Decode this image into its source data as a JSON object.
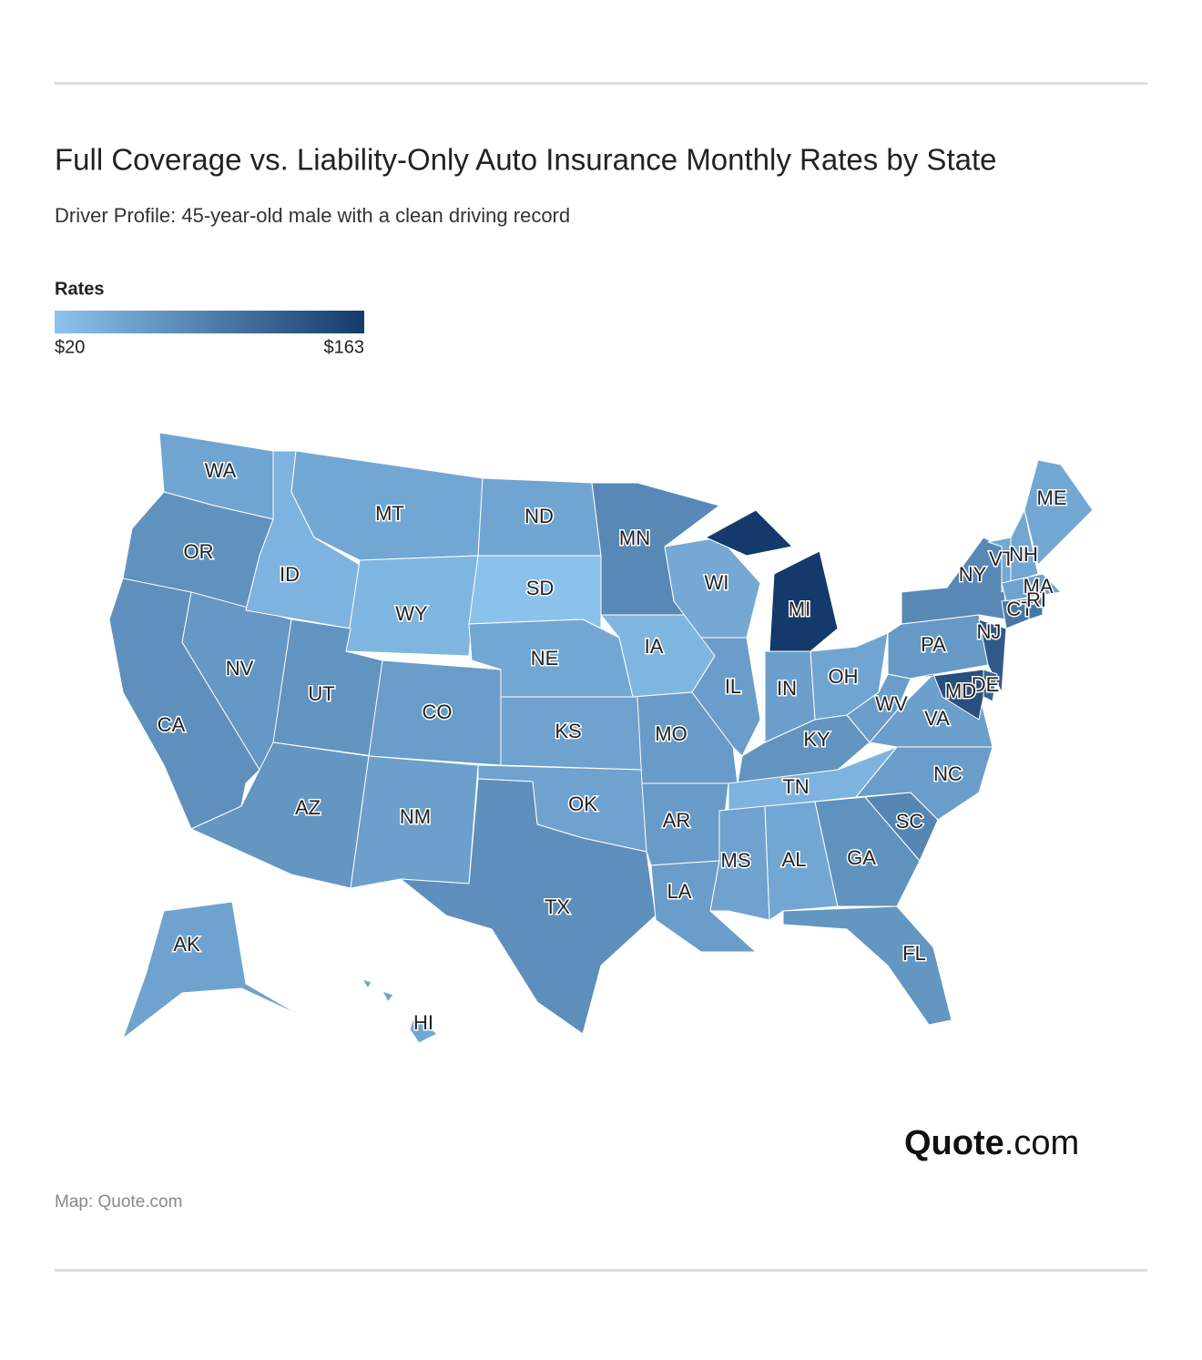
{
  "header": {
    "title": "Full Coverage vs. Liability-Only Auto Insurance Monthly Rates by State",
    "subtitle": "Driver Profile: 45-year-old male with a clean driving record"
  },
  "legend": {
    "title": "Rates",
    "min": {
      "value": 20,
      "label": "$20"
    },
    "max": {
      "value": 163,
      "label": "$163"
    },
    "colors": [
      "#8cc4ee",
      "#143a6b"
    ]
  },
  "map": {
    "states": [
      {
        "code": "WA",
        "value": 52
      },
      {
        "code": "OR",
        "value": 72
      },
      {
        "code": "CA",
        "value": 74
      },
      {
        "code": "NV",
        "value": 66
      },
      {
        "code": "ID",
        "value": 38
      },
      {
        "code": "MT",
        "value": 50
      },
      {
        "code": "WY",
        "value": 35
      },
      {
        "code": "UT",
        "value": 70
      },
      {
        "code": "AZ",
        "value": 68
      },
      {
        "code": "CO",
        "value": 60
      },
      {
        "code": "NM",
        "value": 58
      },
      {
        "code": "ND",
        "value": 52
      },
      {
        "code": "SD",
        "value": 22
      },
      {
        "code": "NE",
        "value": 50
      },
      {
        "code": "KS",
        "value": 55
      },
      {
        "code": "OK",
        "value": 55
      },
      {
        "code": "TX",
        "value": 75
      },
      {
        "code": "MN",
        "value": 82
      },
      {
        "code": "IA",
        "value": 35
      },
      {
        "code": "MO",
        "value": 62
      },
      {
        "code": "AR",
        "value": 62
      },
      {
        "code": "LA",
        "value": 60
      },
      {
        "code": "WI",
        "value": 48
      },
      {
        "code": "IL",
        "value": 60
      },
      {
        "code": "MI",
        "value": 163
      },
      {
        "code": "IN",
        "value": 58
      },
      {
        "code": "OH",
        "value": 52
      },
      {
        "code": "KY",
        "value": 70
      },
      {
        "code": "TN",
        "value": 38
      },
      {
        "code": "MS",
        "value": 55
      },
      {
        "code": "AL",
        "value": 50
      },
      {
        "code": "GA",
        "value": 72
      },
      {
        "code": "FL",
        "value": 68
      },
      {
        "code": "SC",
        "value": 85
      },
      {
        "code": "NC",
        "value": 60
      },
      {
        "code": "VA",
        "value": 58
      },
      {
        "code": "WV",
        "value": 60
      },
      {
        "code": "PA",
        "value": 65
      },
      {
        "code": "NY",
        "value": 82
      },
      {
        "code": "NJ",
        "value": 130
      },
      {
        "code": "DE",
        "value": 120
      },
      {
        "code": "MD",
        "value": 140
      },
      {
        "code": "VT",
        "value": 48
      },
      {
        "code": "NH",
        "value": 50
      },
      {
        "code": "ME",
        "value": 50
      },
      {
        "code": "MA",
        "value": 55
      },
      {
        "code": "CT",
        "value": 100
      },
      {
        "code": "RI",
        "value": 100
      },
      {
        "code": "AK",
        "value": 55
      },
      {
        "code": "HI",
        "value": 50
      }
    ]
  },
  "brand": {
    "name": "Quote",
    "suffix": ".com"
  },
  "source": "Map: Quote.com"
}
